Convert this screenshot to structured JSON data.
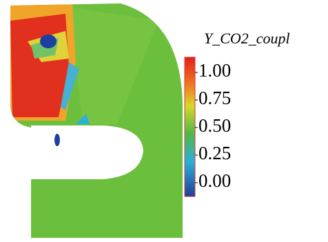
{
  "colorbar": {
    "title": "Y_CO2_coupl",
    "lim": [
      0,
      1
    ],
    "ticks": [
      {
        "value": 1,
        "label": "1.00"
      },
      {
        "value": 0.75,
        "label": "0.75"
      },
      {
        "value": 0.5,
        "label": "0.50"
      },
      {
        "value": 0.25,
        "label": "0.25"
      },
      {
        "value": 0,
        "label": "0.00"
      }
    ]
  }
}
